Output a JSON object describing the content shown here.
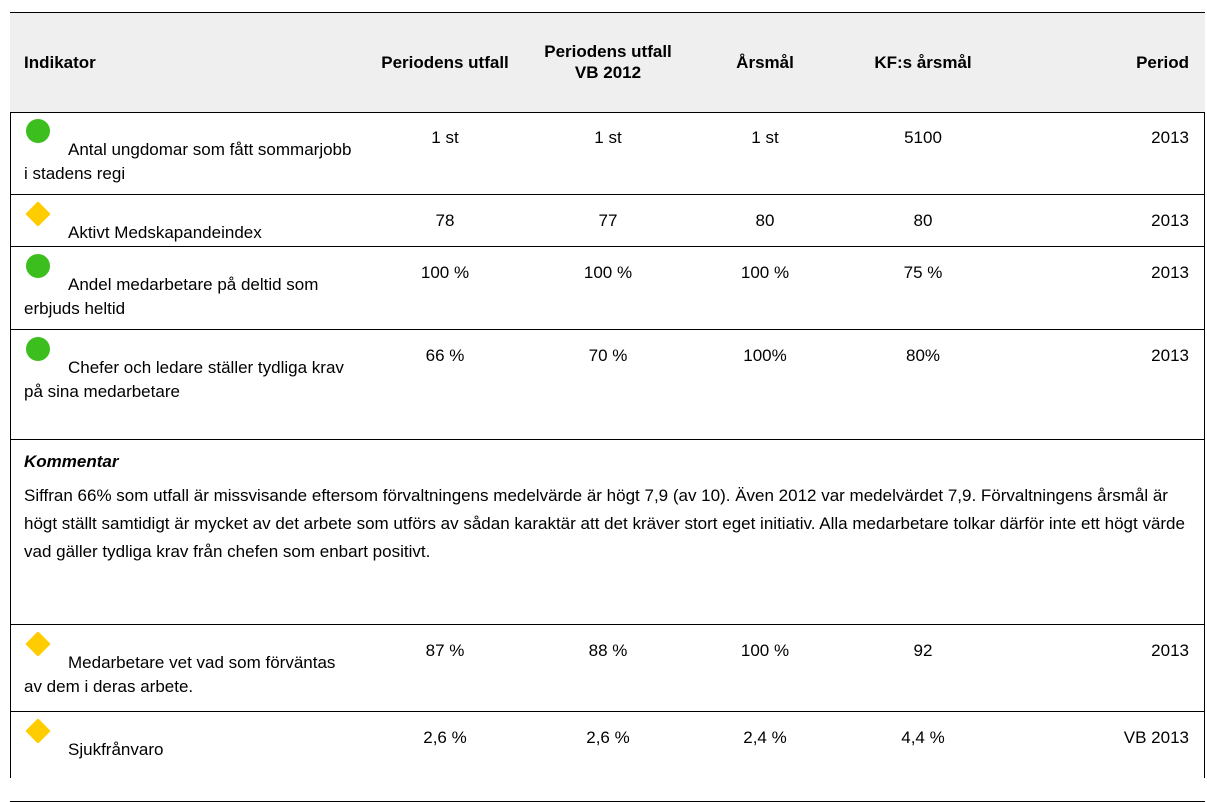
{
  "table": {
    "header": [
      "Indikator",
      "Periodens utfall",
      "Periodens utfall VB 2012",
      "Årsmål",
      "KF:s årsmål",
      "Period"
    ],
    "rows": [
      {
        "status": "#3cbf1e",
        "shape": "circle",
        "cells": [
          "Antal ungdomar som fått sommarjobb i stadens regi",
          "1 st",
          "1 st",
          "1 st",
          "5100",
          "2013"
        ]
      },
      {
        "status": "#ffcc00",
        "shape": "diamond",
        "cells": [
          "Aktivt Medskapandeindex",
          "78",
          "77",
          "80",
          "80",
          "2013"
        ]
      },
      {
        "status": "#3cbf1e",
        "shape": "circle",
        "cells": [
          "Andel medarbetare på deltid som erbjuds heltid",
          "100 %",
          "100 %",
          "100 %",
          "75 %",
          "2013"
        ]
      },
      {
        "status": "#3cbf1e",
        "shape": "circle",
        "cells": [
          "Chefer och ledare ställer tydliga krav på sina medarbetare",
          "66 %",
          "70 %",
          "100%",
          "80%",
          "2013"
        ]
      },
      {
        "comment_title": "Kommentar",
        "comment_text": "Siffran 66% som utfall är missvisande eftersom förvaltningens medelvärde är högt 7,9 (av 10). Även 2012 var medelvärdet 7,9.  Förvaltningens årsmål är högt ställt samtidigt är mycket av det arbete som utförs av sådan karaktär att det kräver stort eget initiativ. Alla medarbetare tolkar därför inte ett högt värde vad gäller tydliga krav från chefen som enbart positivt."
      },
      {
        "status": "#ffcc00",
        "shape": "diamond",
        "cells": [
          "Medarbetare vet vad som förväntas av dem i deras arbete.",
          "87 %",
          "88 %",
          "100 %",
          "92",
          "2013"
        ]
      },
      {
        "status": "#ffcc00",
        "shape": "diamond",
        "cells": [
          "Sjukfrånvaro",
          "2,6 %",
          "2,6 %",
          "2,4 %",
          "4,4 %",
          "VB 2013"
        ]
      }
    ]
  }
}
